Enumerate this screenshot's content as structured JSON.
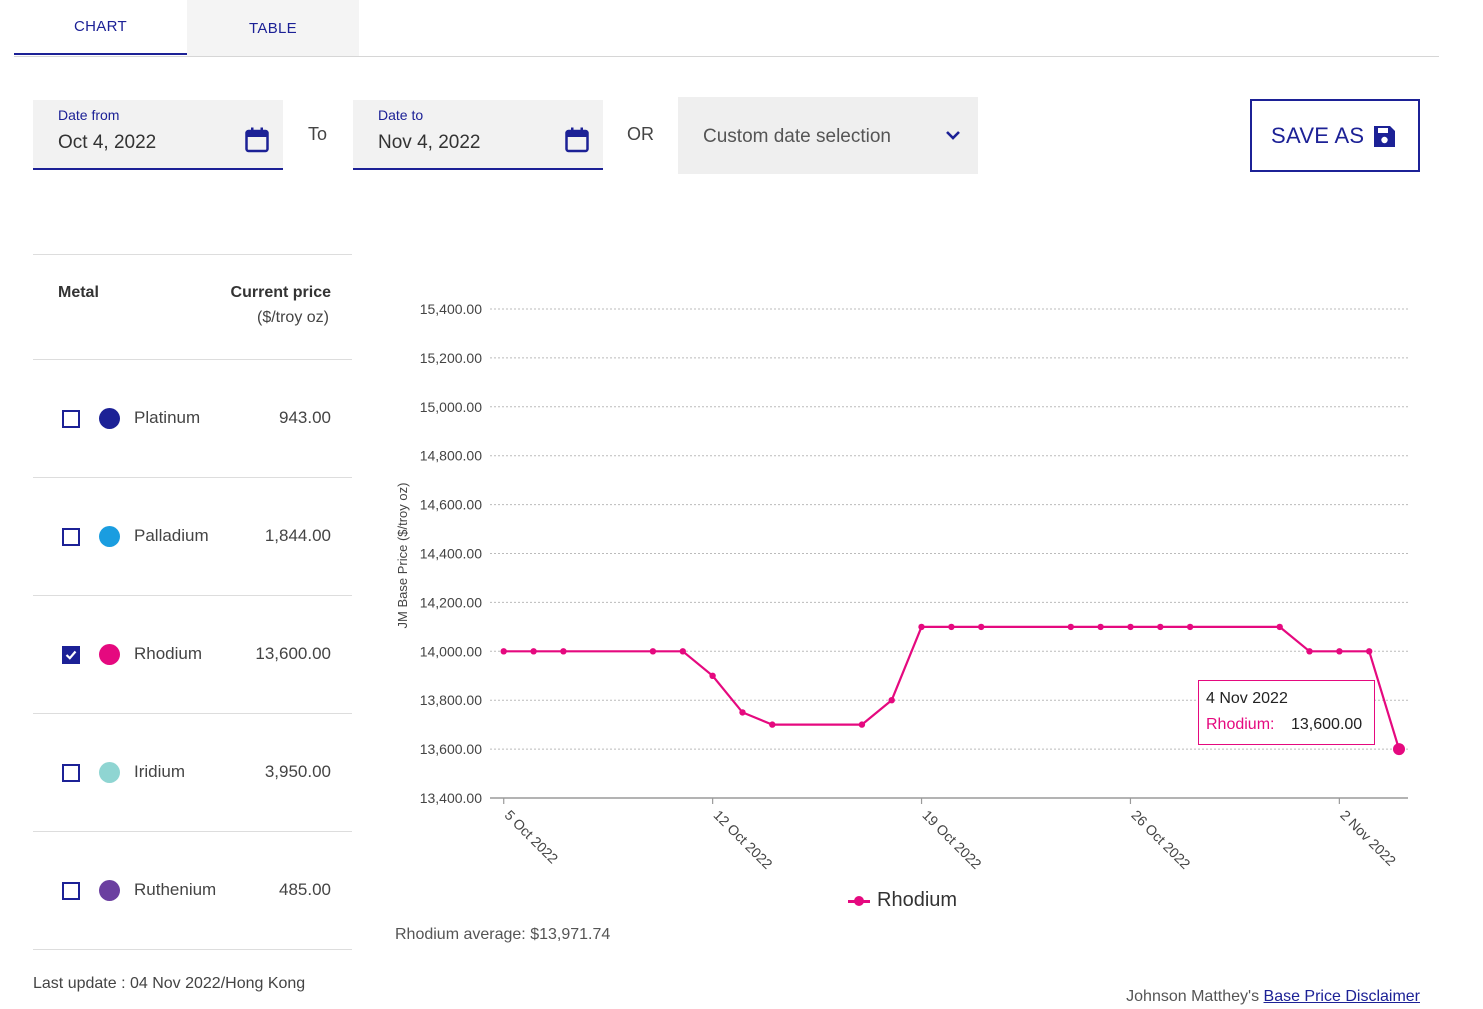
{
  "tabs": [
    {
      "label": "CHART",
      "active": true
    },
    {
      "label": "TABLE",
      "active": false
    }
  ],
  "date_from": {
    "label": "Date from",
    "value": "Oct 4, 2022"
  },
  "date_to": {
    "label": "Date to",
    "value": "Nov 4, 2022"
  },
  "to_label": "To",
  "or_label": "OR",
  "custom_select": {
    "value": "Custom date selection"
  },
  "save_button": {
    "label": "SAVE AS"
  },
  "metal_table": {
    "col_metal": "Metal",
    "col_price": "Current price",
    "col_unit": "($/troy oz)",
    "rows": [
      {
        "name": "Platinum",
        "price": "943.00",
        "color": "#1c2196",
        "checked": false
      },
      {
        "name": "Palladium",
        "price": "1,844.00",
        "color": "#1a9de0",
        "checked": false
      },
      {
        "name": "Rhodium",
        "price": "13,600.00",
        "color": "#e5097f",
        "checked": true
      },
      {
        "name": "Iridium",
        "price": "3,950.00",
        "color": "#8fd5d2",
        "checked": false
      },
      {
        "name": "Ruthenium",
        "price": "485.00",
        "color": "#6b3fa0",
        "checked": false
      }
    ]
  },
  "last_update": "Last update : 04 Nov 2022/Hong Kong",
  "chart_data": {
    "type": "line",
    "ylabel": "JM Base Price ($/troy oz)",
    "ylim": [
      13400,
      15400
    ],
    "yticks": [
      15400,
      15200,
      15000,
      14800,
      14600,
      14400,
      14200,
      14000,
      13800,
      13600,
      13400
    ],
    "ytick_labels": [
      "15,400.00",
      "15,200.00",
      "15,000.00",
      "14,800.00",
      "14,600.00",
      "14,400.00",
      "14,200.00",
      "14,000.00",
      "13,800.00",
      "13,600.00",
      "13,400.00"
    ],
    "xticks": [
      "2022-10-05",
      "2022-10-12",
      "2022-10-19",
      "2022-10-26",
      "2022-11-02"
    ],
    "xtick_labels": [
      "5 Oct 2022",
      "12 Oct 2022",
      "19 Oct 2022",
      "26 Oct 2022",
      "2 Nov 2022"
    ],
    "grid": true,
    "legend_position": "bottom",
    "series": [
      {
        "name": "Rhodium",
        "color": "#e5097f",
        "x": [
          "2022-10-05",
          "2022-10-06",
          "2022-10-07",
          "2022-10-10",
          "2022-10-11",
          "2022-10-12",
          "2022-10-13",
          "2022-10-14",
          "2022-10-17",
          "2022-10-18",
          "2022-10-19",
          "2022-10-20",
          "2022-10-21",
          "2022-10-24",
          "2022-10-25",
          "2022-10-26",
          "2022-10-27",
          "2022-10-28",
          "2022-10-31",
          "2022-11-01",
          "2022-11-02",
          "2022-11-03",
          "2022-11-04"
        ],
        "values": [
          14000,
          14000,
          14000,
          14000,
          14000,
          13900,
          13750,
          13700,
          13700,
          13800,
          14100,
          14100,
          14100,
          14100,
          14100,
          14100,
          14100,
          14100,
          14100,
          14000,
          14000,
          14000,
          13600
        ]
      }
    ]
  },
  "legend_label": "Rhodium",
  "average_text": "Rhodium average: $13,971.74",
  "tooltip": {
    "date": "4 Nov 2022",
    "series": "Rhodium:",
    "value": "13,600.00"
  },
  "disclaimer": {
    "prefix": "Johnson Matthey's",
    "link": "Base Price Disclaimer"
  }
}
